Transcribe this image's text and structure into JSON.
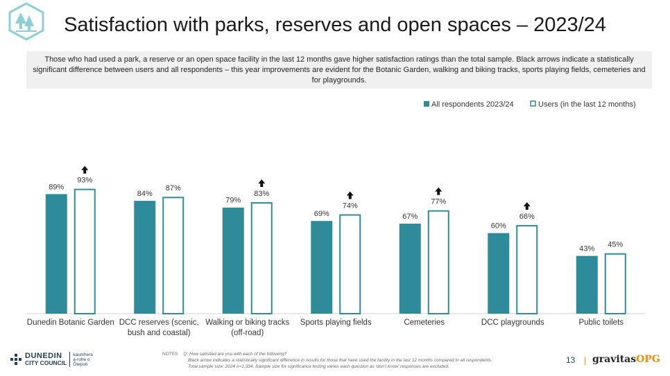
{
  "title": "Satisfaction with parks, reserves and open spaces – 2023/24",
  "summary": "Those who had used a park, a reserve or an open space facility in the last 12 months gave higher satisfaction ratings than the total sample. Black arrows indicate a statistically significant difference between users and all respondents – this year improvements are evident for the Botanic Garden, walking and biking tracks, sports playing fields, cemeteries and for playgrounds.",
  "colors": {
    "all_respondents": "#2e8b9a",
    "users_fill": "#ffffff",
    "users_border": "#2e8b9a"
  },
  "chart_data": {
    "type": "bar",
    "title": "",
    "xlabel": "",
    "ylabel": "",
    "ylim": [
      0,
      100
    ],
    "grid": false,
    "legend_position": "top-right",
    "categories": [
      "Dunedin Botanic Garden",
      "DCC reserves (scenic, bush and coastal)",
      "Walking or biking tracks (off-road)",
      "Sports playing fields",
      "Cemeteries",
      "DCC playgrounds",
      "Public toilets"
    ],
    "series": [
      {
        "name": "All respondents 2023/24",
        "values": [
          89,
          84,
          79,
          69,
          67,
          60,
          43
        ]
      },
      {
        "name": "Users (in the last 12 months)",
        "values": [
          93,
          87,
          83,
          74,
          77,
          66,
          45
        ]
      }
    ],
    "significant_increase": [
      true,
      false,
      true,
      true,
      true,
      true,
      false
    ]
  },
  "footer": {
    "logo_line1": "DUNEDIN",
    "logo_line2": "CITY COUNCIL",
    "logo_maori1": "kaunihera",
    "logo_maori2": "a-rohe o",
    "logo_maori3": "Ōtepoti",
    "notes_label": "NOTES",
    "notes_q": "Q: How satisfied are you with each of the following?",
    "notes_line2": "Black arrow indicates a statistically significant difference in results for those that have used the facility in the last 12 months compared to all respondents.",
    "notes_line3": "Total sample size: 2024 n=1,334. Sample size for significance testing varies each question as ‘don’t know’ responses are excluded.",
    "page_number": "13",
    "separator": "|",
    "brand_main": "gravitas",
    "brand_accent": "OPG"
  }
}
